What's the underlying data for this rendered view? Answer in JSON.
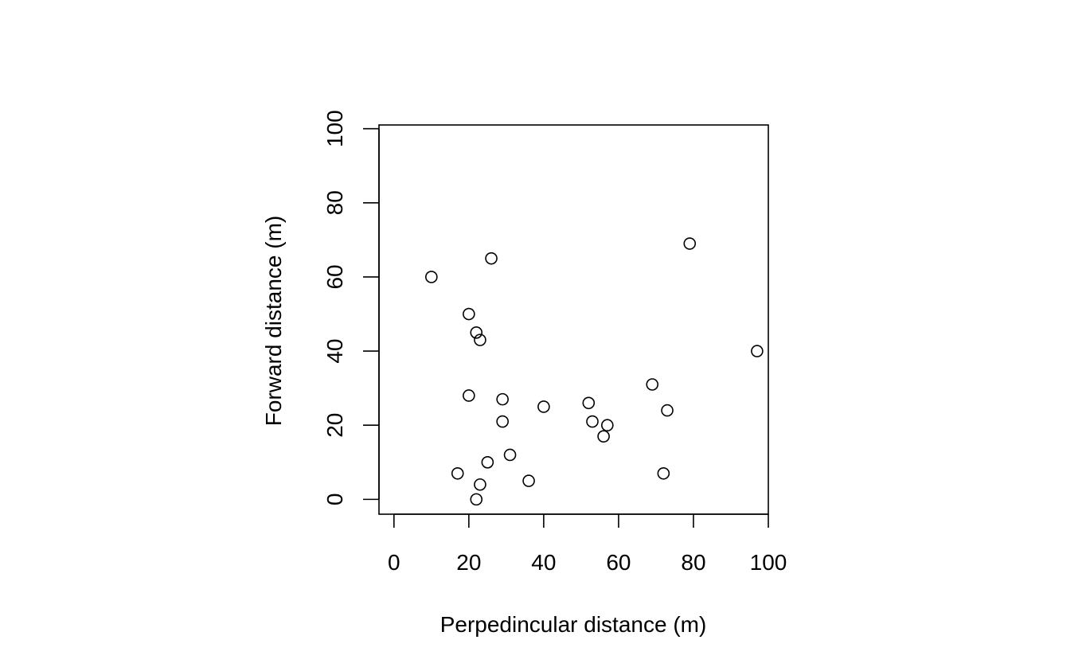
{
  "chart_data": {
    "type": "scatter",
    "title": "",
    "xlabel": "Perpedincular distance (m)",
    "ylabel": "Forward distance (m)",
    "xlim": [
      -4,
      100
    ],
    "ylim": [
      -4,
      101
    ],
    "x_ticks": [
      0,
      20,
      40,
      60,
      80,
      100
    ],
    "y_ticks": [
      0,
      20,
      40,
      60,
      80,
      100
    ],
    "x_tick_labels": [
      "0",
      "20",
      "40",
      "60",
      "80",
      "100"
    ],
    "y_tick_labels": [
      "0",
      "20",
      "40",
      "60",
      "80",
      "100"
    ],
    "grid": false,
    "legend": "none",
    "marker": "open-circle",
    "points": [
      {
        "x": 10,
        "y": 60
      },
      {
        "x": 26,
        "y": 65
      },
      {
        "x": 79,
        "y": 69
      },
      {
        "x": 20,
        "y": 50
      },
      {
        "x": 22,
        "y": 45
      },
      {
        "x": 23,
        "y": 43
      },
      {
        "x": 97,
        "y": 40
      },
      {
        "x": 69,
        "y": 31
      },
      {
        "x": 20,
        "y": 28
      },
      {
        "x": 29,
        "y": 27
      },
      {
        "x": 52,
        "y": 26
      },
      {
        "x": 40,
        "y": 25
      },
      {
        "x": 73,
        "y": 24
      },
      {
        "x": 29,
        "y": 21
      },
      {
        "x": 53,
        "y": 21
      },
      {
        "x": 57,
        "y": 20
      },
      {
        "x": 56,
        "y": 17
      },
      {
        "x": 31,
        "y": 12
      },
      {
        "x": 25,
        "y": 10
      },
      {
        "x": 17,
        "y": 7
      },
      {
        "x": 72,
        "y": 7
      },
      {
        "x": 36,
        "y": 5
      },
      {
        "x": 23,
        "y": 4
      },
      {
        "x": 22,
        "y": 0
      }
    ]
  }
}
